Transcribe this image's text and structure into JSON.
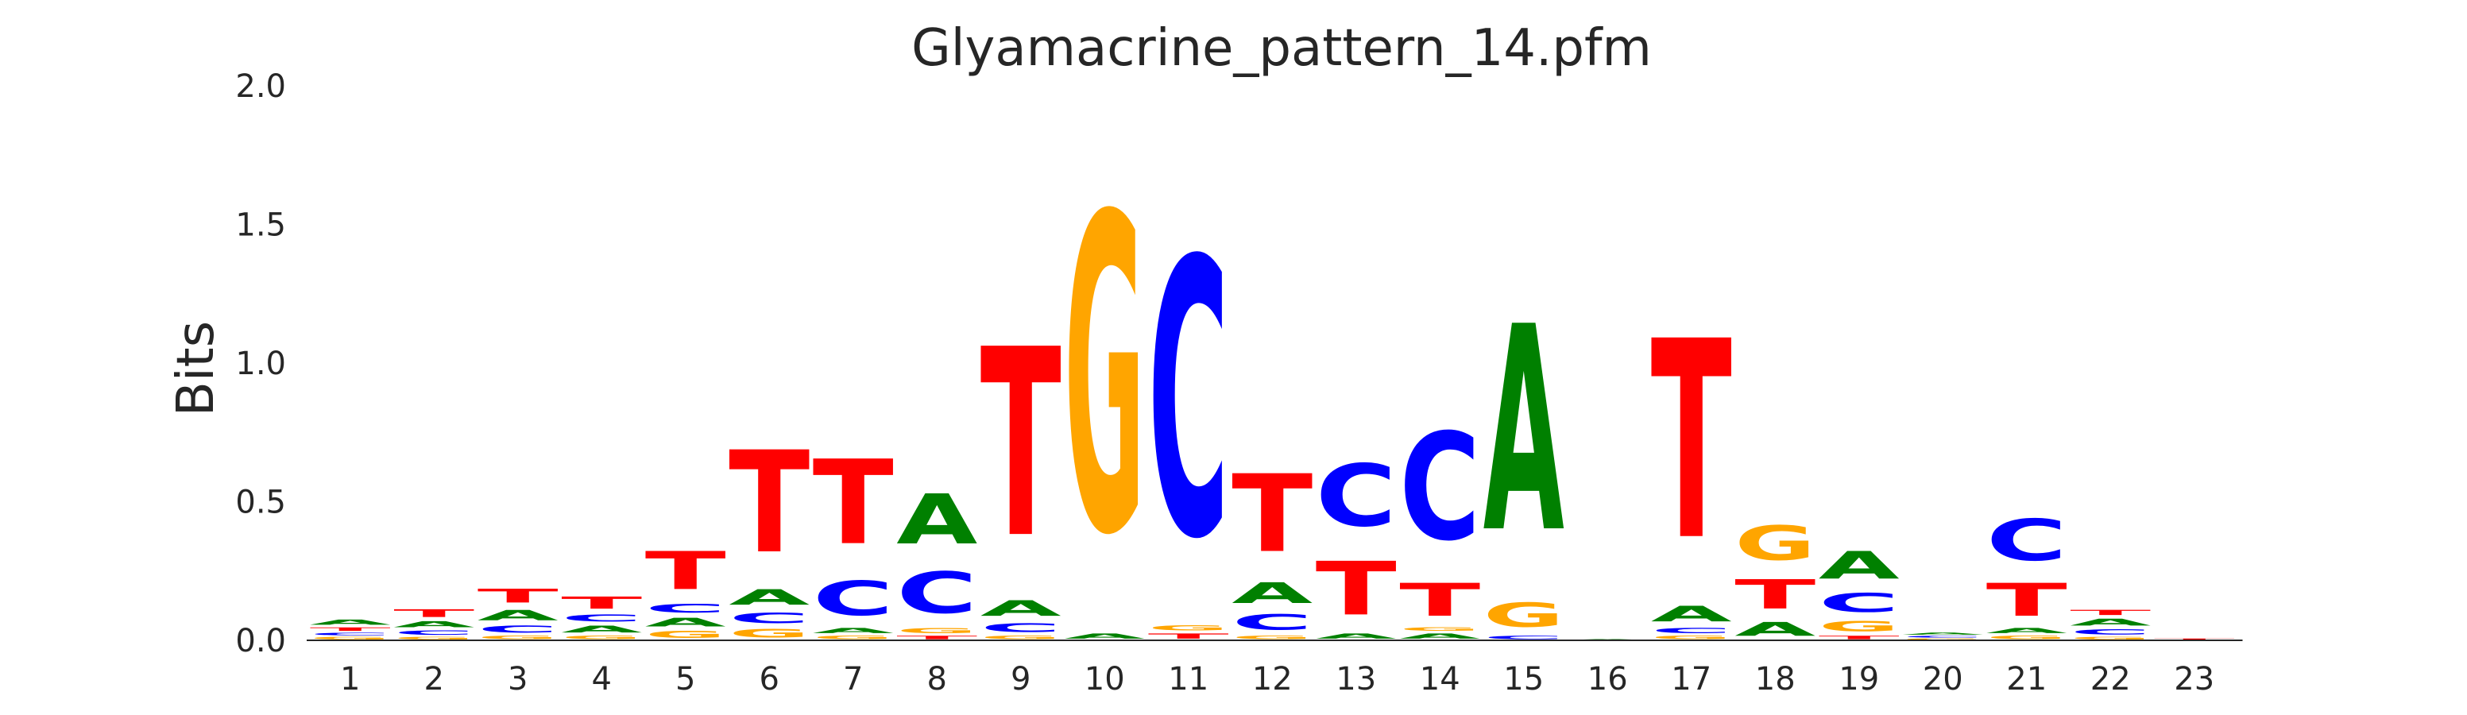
{
  "chart_data": {
    "type": "sequence-logo",
    "title": "Glyamacrine_pattern_14.pfm",
    "ylabel": "Bits",
    "xlabel": "",
    "ylim": [
      0,
      2.0
    ],
    "yticks": [
      "0.0",
      "0.5",
      "1.0",
      "1.5",
      "2.0"
    ],
    "grid": false,
    "legend": "none",
    "colors": {
      "A": "#008000",
      "C": "#0000ff",
      "G": "#ffa500",
      "T": "#ff0000"
    },
    "positions": [
      {
        "label": "1",
        "stack": [
          [
            "G",
            0.015
          ],
          [
            "C",
            0.015
          ],
          [
            "T",
            0.02
          ],
          [
            "A",
            0.03
          ]
        ]
      },
      {
        "label": "2",
        "stack": [
          [
            "G",
            0.015
          ],
          [
            "C",
            0.025
          ],
          [
            "A",
            0.035
          ],
          [
            "T",
            0.045
          ]
        ]
      },
      {
        "label": "3",
        "stack": [
          [
            "G",
            0.02
          ],
          [
            "C",
            0.04
          ],
          [
            "A",
            0.06
          ],
          [
            "T",
            0.08
          ]
        ]
      },
      {
        "label": "4",
        "stack": [
          [
            "G",
            0.02
          ],
          [
            "A",
            0.04
          ],
          [
            "C",
            0.04
          ],
          [
            "T",
            0.07
          ]
        ]
      },
      {
        "label": "5",
        "stack": [
          [
            "G",
            0.04
          ],
          [
            "A",
            0.05
          ],
          [
            "C",
            0.05
          ],
          [
            "T",
            0.22
          ]
        ]
      },
      {
        "label": "6",
        "stack": [
          [
            "G",
            0.05
          ],
          [
            "C",
            0.06
          ],
          [
            "A",
            0.09
          ],
          [
            "T",
            0.59
          ]
        ]
      },
      {
        "label": "7",
        "stack": [
          [
            "G",
            0.02
          ],
          [
            "A",
            0.03
          ],
          [
            "C",
            0.2
          ],
          [
            "T",
            0.49
          ]
        ]
      },
      {
        "label": "8",
        "stack": [
          [
            "T",
            0.02
          ],
          [
            "G",
            0.03
          ],
          [
            "C",
            0.24
          ],
          [
            "A",
            0.29
          ]
        ]
      },
      {
        "label": "9",
        "stack": [
          [
            "G",
            0.02
          ],
          [
            "C",
            0.05
          ],
          [
            "A",
            0.09
          ],
          [
            "T",
            1.09
          ]
        ]
      },
      {
        "label": "10",
        "stack": [
          [
            "A",
            0.03
          ],
          [
            "G",
            1.83
          ]
        ]
      },
      {
        "label": "11",
        "stack": [
          [
            "T",
            0.03
          ],
          [
            "G",
            0.03
          ],
          [
            "C",
            1.6
          ]
        ]
      },
      {
        "label": "12",
        "stack": [
          [
            "G",
            0.02
          ],
          [
            "C",
            0.09
          ],
          [
            "A",
            0.12
          ],
          [
            "T",
            0.45
          ]
        ]
      },
      {
        "label": "13",
        "stack": [
          [
            "A",
            0.03
          ],
          [
            "T",
            0.31
          ],
          [
            "C",
            0.36
          ]
        ]
      },
      {
        "label": "14",
        "stack": [
          [
            "A",
            0.03
          ],
          [
            "G",
            0.02
          ],
          [
            "T",
            0.19
          ],
          [
            "C",
            0.62
          ]
        ]
      },
      {
        "label": "15",
        "stack": [
          [
            "C",
            0.02
          ],
          [
            "G",
            0.14
          ],
          [
            "A",
            1.19
          ]
        ]
      },
      {
        "label": "16",
        "stack": [
          [
            "A",
            0.005
          ]
        ]
      },
      {
        "label": "17",
        "stack": [
          [
            "G",
            0.02
          ],
          [
            "C",
            0.03
          ],
          [
            "A",
            0.09
          ],
          [
            "T",
            1.15
          ]
        ]
      },
      {
        "label": "18",
        "stack": [
          [
            "A",
            0.08
          ],
          [
            "T",
            0.17
          ],
          [
            "G",
            0.2
          ]
        ]
      },
      {
        "label": "19",
        "stack": [
          [
            "T",
            0.02
          ],
          [
            "G",
            0.06
          ],
          [
            "C",
            0.11
          ],
          [
            "A",
            0.16
          ]
        ]
      },
      {
        "label": "20",
        "stack": [
          [
            "G",
            0.008
          ],
          [
            "C",
            0.01
          ],
          [
            "A",
            0.012
          ]
        ]
      },
      {
        "label": "21",
        "stack": [
          [
            "G",
            0.02
          ],
          [
            "A",
            0.03
          ],
          [
            "T",
            0.19
          ],
          [
            "C",
            0.24
          ]
        ]
      },
      {
        "label": "22",
        "stack": [
          [
            "G",
            0.015
          ],
          [
            "C",
            0.03
          ],
          [
            "A",
            0.04
          ],
          [
            "T",
            0.03
          ]
        ]
      },
      {
        "label": "23",
        "stack": [
          [
            "T",
            0.008
          ]
        ]
      }
    ]
  }
}
